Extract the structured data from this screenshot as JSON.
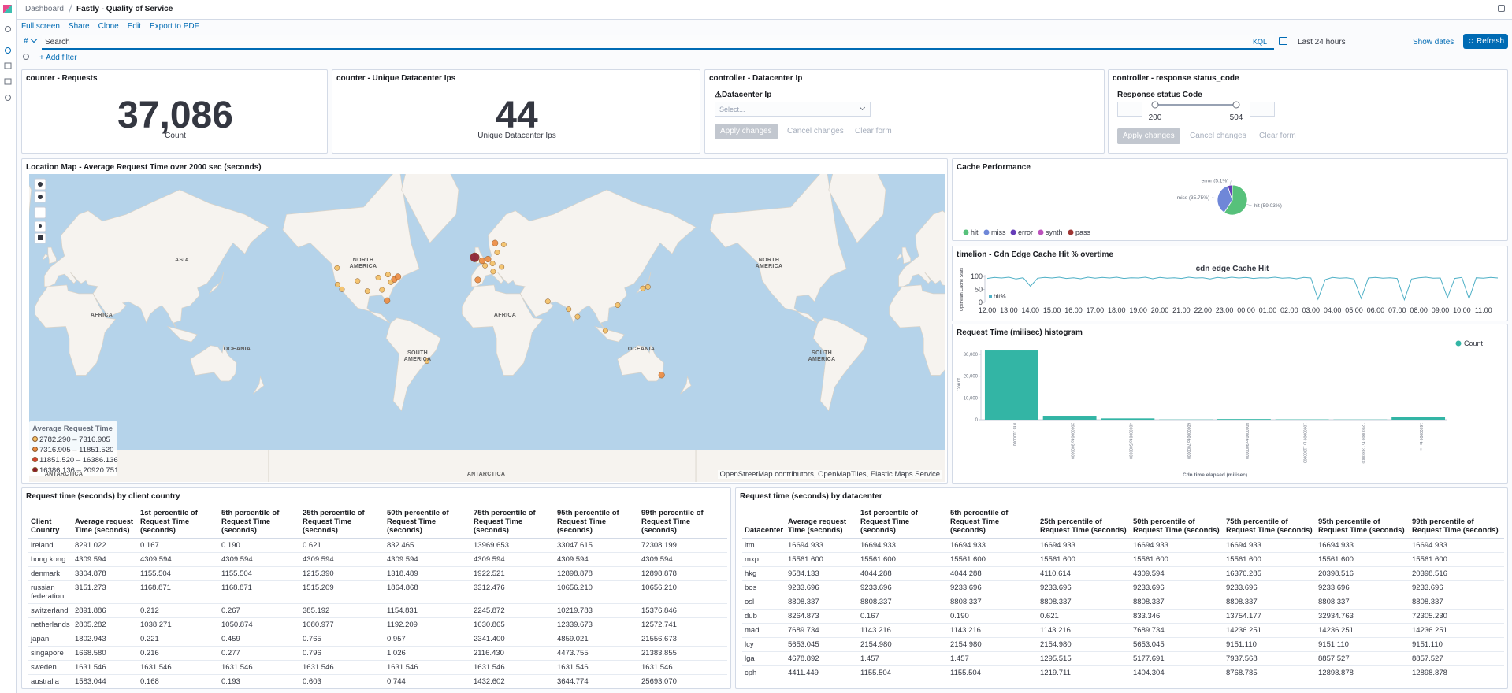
{
  "header": {
    "breadcrumbs": [
      "Dashboard",
      "Fastly - Quality of Service"
    ]
  },
  "menu": [
    "Full screen",
    "Share",
    "Clone",
    "Edit",
    "Export to PDF"
  ],
  "query_bar": {
    "prefix": "#",
    "placeholder": "Search",
    "language": "KQL",
    "time_range": "Last 24 hours",
    "show_dates": "Show dates",
    "refresh": "Refresh",
    "add_filter": "+ Add filter"
  },
  "panels": {
    "requests": {
      "title": "counter - Requests",
      "value": "37,086",
      "label": "Count"
    },
    "unique_ips": {
      "title": "counter - Unique Datacenter Ips",
      "value": 44,
      "label": "Unique Datacenter Ips"
    },
    "datacenter_control": {
      "title": "controller - Datacenter Ip",
      "field_label": "⚠Datacenter Ip",
      "placeholder": "Select...",
      "buttons": [
        "Apply changes",
        "Cancel changes",
        "Clear form"
      ]
    },
    "status_control": {
      "title": "controller - response status_code",
      "field_label": "Response status Code",
      "range_min": 200,
      "range_max": 504,
      "buttons": [
        "Apply changes",
        "Cancel changes",
        "Clear form"
      ]
    },
    "map": {
      "title": "Location Map - Average Request Time over 2000 sec (seconds)",
      "labels": [
        "AFRICA",
        "ASIA",
        "OCEANIA",
        "NORTH AMERICA",
        "SOUTH AMERICA",
        "AFRICA",
        "OCEANIA",
        "NORTH AMERICA",
        "SOUTH AMERICA",
        "ANTARCTICA",
        "ANTARCTICA"
      ],
      "legend": {
        "title": "Average Request Time",
        "ranges": [
          {
            "label": "2782.290 – 7316.905",
            "color": "#f4c064"
          },
          {
            "label": "7316.905 – 11851.520",
            "color": "#ec8a3f"
          },
          {
            "label": "11851.520 – 16386.136",
            "color": "#d6412f"
          },
          {
            "label": "16386.136 – 20920.751",
            "color": "#8a1a2b"
          }
        ]
      },
      "points": [
        {
          "lat": 53.3,
          "lon": -6.3,
          "range": 3
        },
        {
          "lat": 51.5,
          "lon": -0.1,
          "range": 1
        },
        {
          "lat": 52.4,
          "lon": 4.9,
          "range": 1
        },
        {
          "lat": 48.9,
          "lon": 2.4,
          "range": 0
        },
        {
          "lat": 50.1,
          "lon": 8.7,
          "range": 0
        },
        {
          "lat": 55.7,
          "lon": 12.6,
          "range": 0
        },
        {
          "lat": 59.3,
          "lon": 18.1,
          "range": 0
        },
        {
          "lat": 59.9,
          "lon": 10.8,
          "range": 1
        },
        {
          "lat": 40.4,
          "lon": -3.7,
          "range": 1
        },
        {
          "lat": 45.5,
          "lon": 9.2,
          "range": 0
        },
        {
          "lat": 48.2,
          "lon": 16.4,
          "range": 0
        },
        {
          "lat": 47.6,
          "lon": -122.3,
          "range": 0
        },
        {
          "lat": 37.3,
          "lon": -121.9,
          "range": 0
        },
        {
          "lat": 34.1,
          "lon": -118.2,
          "range": 0
        },
        {
          "lat": 39.7,
          "lon": -105.0,
          "range": 0
        },
        {
          "lat": 32.8,
          "lon": -96.8,
          "range": 0
        },
        {
          "lat": 41.9,
          "lon": -87.6,
          "range": 0
        },
        {
          "lat": 33.7,
          "lon": -84.4,
          "range": 0
        },
        {
          "lat": 25.8,
          "lon": -80.2,
          "range": 1
        },
        {
          "lat": 38.9,
          "lon": -77.0,
          "range": 0
        },
        {
          "lat": 40.7,
          "lon": -74.0,
          "range": 1
        },
        {
          "lat": 42.4,
          "lon": -71.0,
          "range": 1
        },
        {
          "lat": 43.7,
          "lon": -79.4,
          "range": 0
        },
        {
          "lat": 25.2,
          "lon": 55.3,
          "range": 0
        },
        {
          "lat": 19.1,
          "lon": 72.9,
          "range": 0
        },
        {
          "lat": 13.1,
          "lon": 80.3,
          "range": 0
        },
        {
          "lat": 1.35,
          "lon": 103.8,
          "range": 0
        },
        {
          "lat": 22.3,
          "lon": 114.2,
          "range": 0
        },
        {
          "lat": 35.7,
          "lon": 139.7,
          "range": 0
        },
        {
          "lat": 34.7,
          "lon": 135.5,
          "range": 0
        },
        {
          "lat": -23.5,
          "lon": -46.6,
          "range": 0
        },
        {
          "lat": -33.9,
          "lon": 151.2,
          "range": 1
        }
      ],
      "attribution": "OpenStreetMap contributors, OpenMapTiles, Elastic Maps Service"
    },
    "cache": {
      "title": "Cache Performance",
      "slices": [
        {
          "name": "hit",
          "value": 59.03,
          "value_label": "hit (59.03%)"
        },
        {
          "name": "miss",
          "value": 35.75,
          "value_label": "miss (35.75%)"
        },
        {
          "name": "error",
          "value": 5.1,
          "value_label": "error (5.1%)"
        }
      ],
      "legend": [
        {
          "name": "hit",
          "color": "#57c17b"
        },
        {
          "name": "miss",
          "color": "#6f87d8"
        },
        {
          "name": "error",
          "color": "#663db8"
        },
        {
          "name": "synth",
          "color": "#bc52bc"
        },
        {
          "name": "pass",
          "color": "#9e3533"
        }
      ]
    },
    "timelion": {
      "title": "timelion - Cdn Edge Cache Hit % overtime",
      "chart_title": "cdn edge Cache Hit",
      "y_label": "Upstream Cache Stats",
      "series_name": "hit%",
      "color": "#4fb0c6",
      "ylim": [
        0,
        100
      ],
      "yticks": [
        0,
        50,
        100
      ],
      "xticks": [
        "12:00",
        "13:00",
        "14:00",
        "15:00",
        "16:00",
        "17:00",
        "18:00",
        "19:00",
        "20:00",
        "21:00",
        "22:00",
        "23:00",
        "00:00",
        "01:00",
        "02:00",
        "03:00",
        "04:00",
        "05:00",
        "06:00",
        "07:00",
        "08:00",
        "09:00",
        "10:00",
        "11:00"
      ],
      "values": [
        92,
        96,
        94,
        97,
        90,
        95,
        62,
        93,
        96,
        94,
        97,
        92,
        95,
        91,
        97,
        93,
        96,
        94,
        97,
        92,
        95,
        94,
        97,
        91,
        96,
        93,
        95,
        92,
        97,
        94,
        95,
        90,
        96,
        93,
        97,
        94,
        96,
        92,
        95,
        94,
        97,
        93,
        95,
        91,
        96,
        94,
        12,
        88,
        96,
        93,
        95,
        90,
        15,
        94,
        96,
        93,
        95,
        92,
        10,
        90,
        95,
        97,
        93,
        94,
        18,
        92,
        96,
        14,
        95,
        93,
        96,
        94
      ]
    },
    "histogram": {
      "title": "Request Time (milisec) histogram",
      "legend": "Count",
      "color": "#33b5a5",
      "x_label": "Cdn time elapsed (milisec)",
      "y_label": "Count",
      "ylim": [
        0,
        32000
      ],
      "yticks": [
        0,
        {
          "value": 10000,
          "label": "10,000"
        },
        {
          "value": 20000,
          "label": "20,000"
        },
        {
          "value": 30000,
          "label": "30,000"
        }
      ],
      "categories": [
        "0 to 1000000",
        "2000000 to 3000000",
        "4000000 to 5000000",
        "6000000 to 7000000",
        "8000000 to 9000000",
        "10000000 to 11000000",
        "12000000 to 13000000",
        "16000000 to +∞"
      ],
      "values": [
        31800,
        1800,
        600,
        100,
        300,
        150,
        100,
        1400
      ]
    },
    "country_table": {
      "title": "Request time (seconds) by client country",
      "columns": [
        "Client Country",
        "Average request Time (seconds)",
        "1st percentile of Request Time (seconds)",
        "5th percentile of Request Time (seconds)",
        "25th percentile of Request Time (seconds)",
        "50th percentile of Request Time (seconds)",
        "75th percentile of Request Time (seconds)",
        "95th percentile of Request Time (seconds)",
        "99th percentile of Request Time (seconds)"
      ],
      "rows": [
        [
          "ireland",
          "8291.022",
          "0.167",
          "0.190",
          "0.621",
          "832.465",
          "13969.653",
          "33047.615",
          "72308.199"
        ],
        [
          "hong kong",
          "4309.594",
          "4309.594",
          "4309.594",
          "4309.594",
          "4309.594",
          "4309.594",
          "4309.594",
          "4309.594"
        ],
        [
          "denmark",
          "3304.878",
          "1155.504",
          "1155.504",
          "1215.390",
          "1318.489",
          "1922.521",
          "12898.878",
          "12898.878"
        ],
        [
          "russian federation",
          "3151.273",
          "1168.871",
          "1168.871",
          "1515.209",
          "1864.868",
          "3312.476",
          "10656.210",
          "10656.210"
        ],
        [
          "switzerland",
          "2891.886",
          "0.212",
          "0.267",
          "385.192",
          "1154.831",
          "2245.872",
          "10219.783",
          "15376.846"
        ],
        [
          "netherlands",
          "2805.282",
          "1038.271",
          "1050.874",
          "1080.977",
          "1192.209",
          "1630.865",
          "12339.673",
          "12572.741"
        ],
        [
          "japan",
          "1802.943",
          "0.221",
          "0.459",
          "0.765",
          "0.957",
          "2341.400",
          "4859.021",
          "21556.673"
        ],
        [
          "singapore",
          "1668.580",
          "0.216",
          "0.277",
          "0.796",
          "1.026",
          "2116.430",
          "4473.755",
          "21383.855"
        ],
        [
          "sweden",
          "1631.546",
          "1631.546",
          "1631.546",
          "1631.546",
          "1631.546",
          "1631.546",
          "1631.546",
          "1631.546"
        ],
        [
          "australia",
          "1583.044",
          "0.168",
          "0.193",
          "0.603",
          "0.744",
          "1432.602",
          "3644.774",
          "25693.070"
        ]
      ]
    },
    "datacenter_table": {
      "title": "Request time (seconds) by datacenter",
      "columns": [
        "Datacenter",
        "Average request Time (seconds)",
        "1st percentile of Request Time (seconds)",
        "5th percentile of Request Time (seconds)",
        "25th percentile of Request Time (seconds)",
        "50th percentile of Request Time (seconds)",
        "75th percentile of Request Time (seconds)",
        "95th percentile of Request Time (seconds)",
        "99th percentile of Request Time (seconds)"
      ],
      "rows": [
        [
          "itm",
          "16694.933",
          "16694.933",
          "16694.933",
          "16694.933",
          "16694.933",
          "16694.933",
          "16694.933",
          "16694.933"
        ],
        [
          "mxp",
          "15561.600",
          "15561.600",
          "15561.600",
          "15561.600",
          "15561.600",
          "15561.600",
          "15561.600",
          "15561.600"
        ],
        [
          "hkg",
          "9584.133",
          "4044.288",
          "4044.288",
          "4110.614",
          "4309.594",
          "16376.285",
          "20398.516",
          "20398.516"
        ],
        [
          "bos",
          "9233.696",
          "9233.696",
          "9233.696",
          "9233.696",
          "9233.696",
          "9233.696",
          "9233.696",
          "9233.696"
        ],
        [
          "osl",
          "8808.337",
          "8808.337",
          "8808.337",
          "8808.337",
          "8808.337",
          "8808.337",
          "8808.337",
          "8808.337"
        ],
        [
          "dub",
          "8264.873",
          "0.167",
          "0.190",
          "0.621",
          "833.346",
          "13754.177",
          "32934.763",
          "72305.230"
        ],
        [
          "mad",
          "7689.734",
          "1143.216",
          "1143.216",
          "1143.216",
          "7689.734",
          "14236.251",
          "14236.251",
          "14236.251"
        ],
        [
          "lcy",
          "5653.045",
          "2154.980",
          "2154.980",
          "2154.980",
          "5653.045",
          "9151.110",
          "9151.110",
          "9151.110"
        ],
        [
          "lga",
          "4678.892",
          "1.457",
          "1.457",
          "1295.515",
          "5177.691",
          "7937.568",
          "8857.527",
          "8857.527"
        ],
        [
          "cph",
          "4411.449",
          "1155.504",
          "1155.504",
          "1219.711",
          "1404.304",
          "8768.785",
          "12898.878",
          "12898.878"
        ]
      ]
    }
  }
}
